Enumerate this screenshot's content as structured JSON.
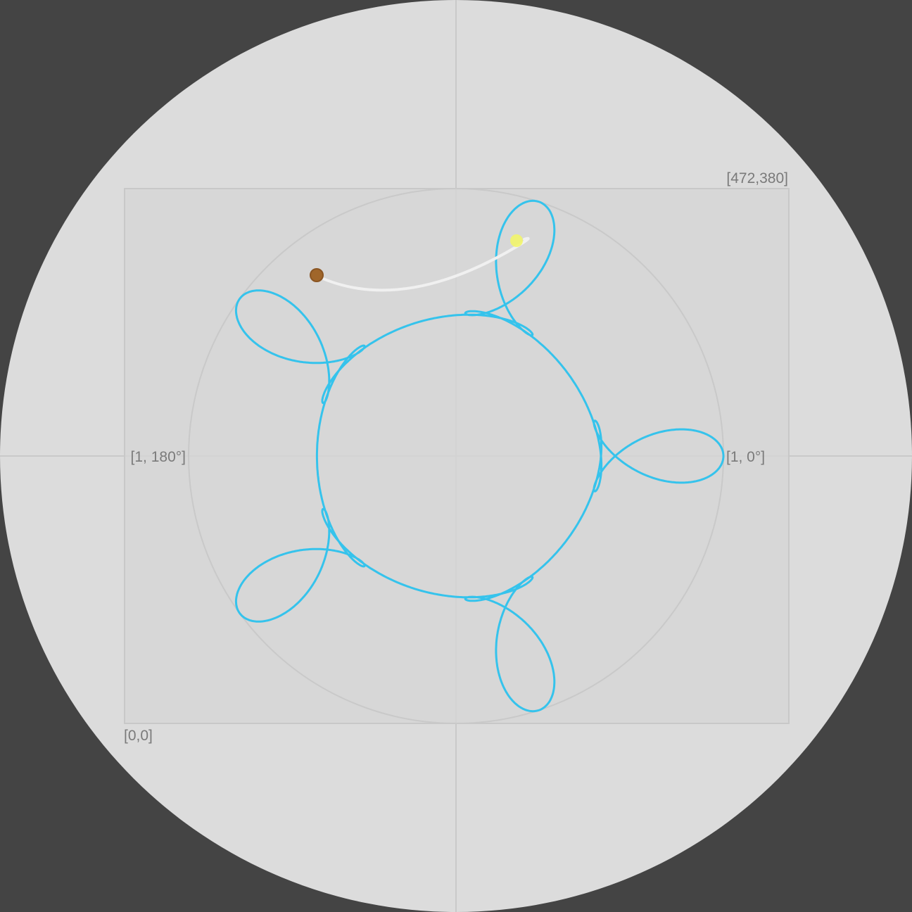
{
  "labels": {
    "top_right_corner": "[472,380]",
    "bottom_left_corner": "[0,0]",
    "left_axis": "[1, 180°]",
    "right_axis": "[1, 0°]"
  },
  "colors": {
    "background": "#444444",
    "disk": "#dcdcdc",
    "frame_fill": "#d6d6d6",
    "frame_stroke": "#c8c8c8",
    "gridline": "#c9c9c9",
    "path": "#35c3ec",
    "trail": "#f0f0f0",
    "start_marker": "#a0662a",
    "current_marker": "#f2f56a"
  },
  "pattern": {
    "petals": 5,
    "loops_per_petal": 2,
    "start_marker": "brown-dot",
    "current_marker": "yellow-dot"
  }
}
